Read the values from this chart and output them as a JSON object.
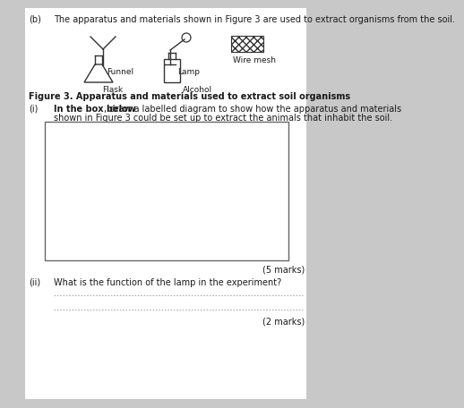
{
  "background_color": "#c8c8c8",
  "page_bg": "#ffffff",
  "part_label": "(b)",
  "intro_text": "The apparatus and materials shown in Figure 3 are used to extract organisms from the soil.",
  "figure_caption": "Figure 3. Apparatus and materials used to extract soil organisms",
  "part_i_label": "(i)",
  "part_i_bold": "In the box below",
  "part_i_rest": ", draw a labelled diagram to show how the apparatus and materials",
  "part_i_line2": "shown in Figure 3 could be set up to extract the animals that inhabit the soil.",
  "marks_i": "(5 marks)",
  "part_ii_label": "(ii)",
  "part_ii_text": "What is the function of the lamp in the experiment?",
  "marks_ii": "(2 marks)",
  "item_labels": [
    "Funnel",
    "Lamp",
    "Wire mesh",
    "Flask",
    "Alcohol"
  ],
  "text_color": "#1a1a1a",
  "box_border_color": "#555555",
  "dotted_line_color": "#999999",
  "line_color": "#333333"
}
